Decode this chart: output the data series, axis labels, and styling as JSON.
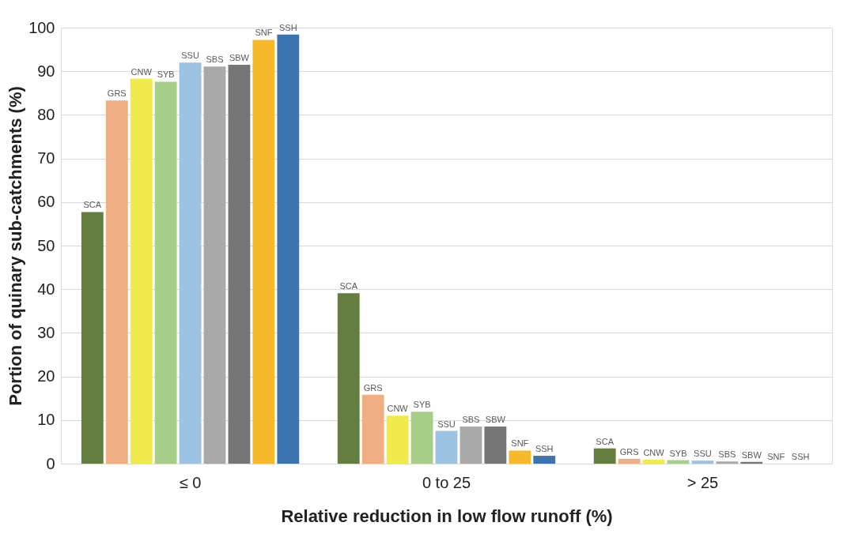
{
  "chart_data": {
    "type": "bar",
    "xlabel": "Relative reduction in low flow runoff (%)",
    "ylabel": "Portion of quinary sub-catchments (%)",
    "categories": [
      "≤ 0",
      "0 to 25",
      "> 25"
    ],
    "series": [
      {
        "name": "SCA",
        "color": "#647d41",
        "values": [
          57.7,
          39.1,
          3.5
        ]
      },
      {
        "name": "GRS",
        "color": "#efae84",
        "values": [
          83.3,
          15.8,
          1.1
        ]
      },
      {
        "name": "CNW",
        "color": "#f1ea4c",
        "values": [
          88.3,
          11.0,
          0.9
        ]
      },
      {
        "name": "SYB",
        "color": "#a7cf8a",
        "values": [
          87.6,
          11.9,
          0.8
        ]
      },
      {
        "name": "SSU",
        "color": "#9dc3e3",
        "values": [
          92.0,
          7.5,
          0.7
        ]
      },
      {
        "name": "SBS",
        "color": "#a9a9a9",
        "values": [
          91.1,
          8.5,
          0.5
        ]
      },
      {
        "name": "SBW",
        "color": "#767676",
        "values": [
          91.5,
          8.5,
          0.4
        ]
      },
      {
        "name": "SNF",
        "color": "#f6b92b",
        "values": [
          97.2,
          3.0,
          0
        ]
      },
      {
        "name": "SSH",
        "color": "#3b74ae",
        "values": [
          98.4,
          1.8,
          0
        ]
      }
    ],
    "ylim": [
      0,
      100
    ],
    "yticks": [
      0,
      10,
      20,
      30,
      40,
      50,
      60,
      70,
      80,
      90,
      100
    ],
    "grid": "y"
  }
}
